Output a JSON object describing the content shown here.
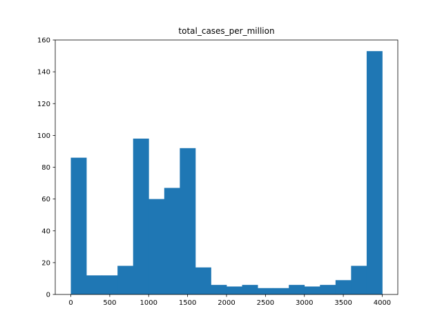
{
  "chart_data": {
    "type": "bar",
    "title": "total_cases_per_million",
    "xlabel": "",
    "ylabel": "",
    "bin_width": 200,
    "bins": [
      {
        "x0": 0,
        "x1": 200,
        "count": 86
      },
      {
        "x0": 200,
        "x1": 400,
        "count": 12
      },
      {
        "x0": 400,
        "x1": 600,
        "count": 12
      },
      {
        "x0": 600,
        "x1": 800,
        "count": 18
      },
      {
        "x0": 800,
        "x1": 1000,
        "count": 98
      },
      {
        "x0": 1000,
        "x1": 1200,
        "count": 60
      },
      {
        "x0": 1200,
        "x1": 1400,
        "count": 67
      },
      {
        "x0": 1400,
        "x1": 1600,
        "count": 92
      },
      {
        "x0": 1600,
        "x1": 1800,
        "count": 17
      },
      {
        "x0": 1800,
        "x1": 2000,
        "count": 6
      },
      {
        "x0": 2000,
        "x1": 2200,
        "count": 5
      },
      {
        "x0": 2200,
        "x1": 2400,
        "count": 6
      },
      {
        "x0": 2400,
        "x1": 2600,
        "count": 4
      },
      {
        "x0": 2600,
        "x1": 2800,
        "count": 4
      },
      {
        "x0": 2800,
        "x1": 3000,
        "count": 6
      },
      {
        "x0": 3000,
        "x1": 3200,
        "count": 5
      },
      {
        "x0": 3200,
        "x1": 3400,
        "count": 6
      },
      {
        "x0": 3400,
        "x1": 3600,
        "count": 9
      },
      {
        "x0": 3600,
        "x1": 3800,
        "count": 18
      },
      {
        "x0": 3800,
        "x1": 4000,
        "count": 153
      }
    ],
    "xlim": [
      -200,
      4200
    ],
    "ylim": [
      0,
      160
    ],
    "x_ticks": [
      0,
      500,
      1000,
      1500,
      2000,
      2500,
      3000,
      3500,
      4000
    ],
    "y_ticks": [
      0,
      20,
      40,
      60,
      80,
      100,
      120,
      140,
      160
    ],
    "bar_color": "#1f77b4",
    "grid": false,
    "legend": "none"
  }
}
